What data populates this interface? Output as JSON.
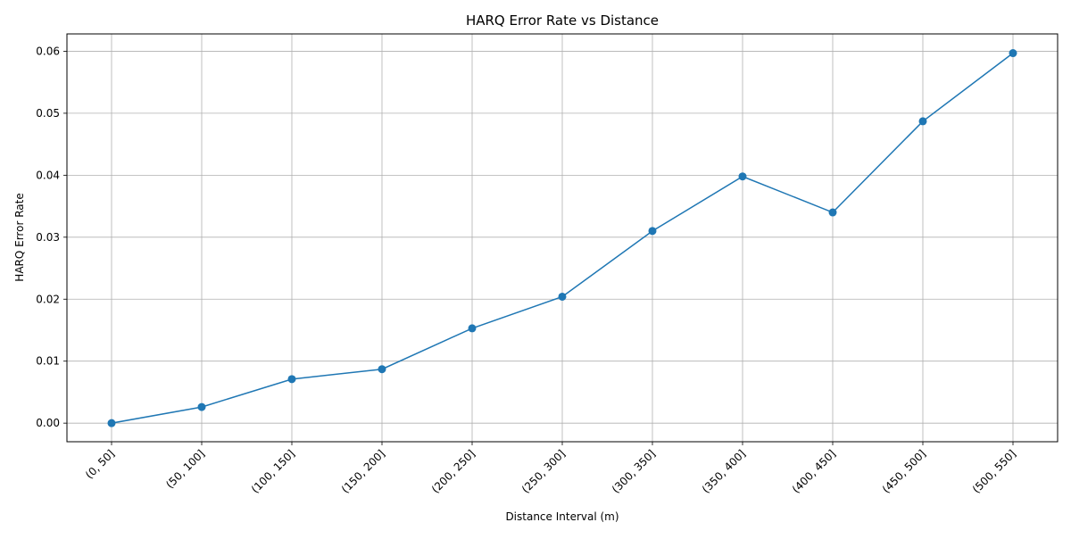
{
  "chart_data": {
    "type": "line",
    "title": "HARQ Error Rate vs Distance",
    "xlabel": "Distance Interval (m)",
    "ylabel": "HARQ Error Rate",
    "categories": [
      "(0, 50]",
      "(50, 100]",
      "(100, 150]",
      "(150, 200]",
      "(200, 250]",
      "(250, 300]",
      "(300, 350]",
      "(350, 400]",
      "(400, 450]",
      "(450, 500]",
      "(500, 550]"
    ],
    "series": [
      {
        "values": [
          0.0,
          0.0026,
          0.0071,
          0.0087,
          0.0153,
          0.0204,
          0.031,
          0.0398,
          0.034,
          0.0487,
          0.0597
        ],
        "color": "#1f77b4",
        "marker": "circle"
      }
    ],
    "ylim": [
      -0.003,
      0.0628
    ],
    "yticks": [
      "0.00",
      "0.01",
      "0.02",
      "0.03",
      "0.04",
      "0.05",
      "0.06"
    ],
    "grid": true,
    "xtick_rotation": "45"
  }
}
